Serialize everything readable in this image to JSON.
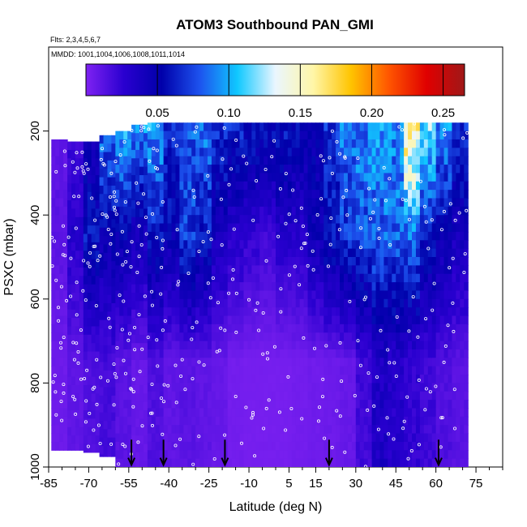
{
  "chart_data": {
    "type": "heatmap",
    "title": "ATOM3 Southbound PAN_GMI",
    "subtitle_flights": "Flts: 2,3,4,5,6,7",
    "subtitle_dates": "MMDD: 1001,1004,1006,1008,1011,1014",
    "xlabel": "Latitude (deg N)",
    "ylabel": "PSXC (mbar)",
    "xlim": [
      -85,
      85
    ],
    "ylim": [
      1000,
      0
    ],
    "x_ticks": [
      "-85",
      "-70",
      "-55",
      "-40",
      "-25",
      "-10",
      "5",
      "15",
      "30",
      "45",
      "60",
      "75"
    ],
    "y_ticks": [
      "200",
      "400",
      "600",
      "800",
      "1000"
    ],
    "colorbar": {
      "range": [
        0.0,
        0.265
      ],
      "tick_labels": [
        "0.05",
        "0.10",
        "0.15",
        "0.20",
        "0.25"
      ],
      "colors": [
        "#7f22f2",
        "#2a00d0",
        "#0000aa",
        "#1d52ee",
        "#10c8ff",
        "#eaf6ff",
        "#fff6a8",
        "#ffc400",
        "#ff5500",
        "#e00000",
        "#a01818"
      ]
    },
    "arrow_latitudes": [
      -54,
      -42,
      -19,
      20,
      61
    ],
    "profiles": [
      {
        "lat": -81,
        "pmin": 220,
        "pmax": 960,
        "upper": 0.01,
        "mid": 0.012,
        "low": 0.006
      },
      {
        "lat": -75,
        "pmin": 225,
        "pmax": 960,
        "upper": 0.02,
        "mid": 0.03,
        "low": 0.01
      },
      {
        "lat": -69,
        "pmin": 225,
        "pmax": 965,
        "upper": 0.04,
        "mid": 0.06,
        "low": 0.016
      },
      {
        "lat": -63,
        "pmin": 210,
        "pmax": 975,
        "upper": 0.085,
        "mid": 0.05,
        "low": 0.018
      },
      {
        "lat": -57,
        "pmin": 200,
        "pmax": 1000,
        "upper": 0.1,
        "mid": 0.05,
        "low": 0.012
      },
      {
        "lat": -51,
        "pmin": 185,
        "pmax": 1000,
        "upper": 0.09,
        "mid": 0.04,
        "low": 0.008
      },
      {
        "lat": -45,
        "pmin": 180,
        "pmax": 1000,
        "upper": 0.095,
        "mid": 0.06,
        "low": 0.015
      },
      {
        "lat": -39,
        "pmin": 180,
        "pmax": 1000,
        "upper": 0.07,
        "mid": 0.05,
        "low": 0.01
      },
      {
        "lat": -33,
        "pmin": 180,
        "pmax": 1000,
        "upper": 0.08,
        "mid": 0.07,
        "low": 0.012
      },
      {
        "lat": -27,
        "pmin": 180,
        "pmax": 1000,
        "upper": 0.085,
        "mid": 0.06,
        "low": 0.01
      },
      {
        "lat": -21,
        "pmin": 180,
        "pmax": 1000,
        "upper": 0.07,
        "mid": 0.04,
        "low": 0.008
      },
      {
        "lat": -15,
        "pmin": 180,
        "pmax": 1000,
        "upper": 0.065,
        "mid": 0.03,
        "low": 0.004
      },
      {
        "lat": -9,
        "pmin": 180,
        "pmax": 1000,
        "upper": 0.06,
        "mid": 0.025,
        "low": 0.003
      },
      {
        "lat": -3,
        "pmin": 180,
        "pmax": 1000,
        "upper": 0.055,
        "mid": 0.02,
        "low": 0.003
      },
      {
        "lat": 3,
        "pmin": 180,
        "pmax": 1000,
        "upper": 0.06,
        "mid": 0.03,
        "low": 0.003
      },
      {
        "lat": 9,
        "pmin": 180,
        "pmax": 1000,
        "upper": 0.055,
        "mid": 0.03,
        "low": 0.004
      },
      {
        "lat": 15,
        "pmin": 180,
        "pmax": 1000,
        "upper": 0.05,
        "mid": 0.045,
        "low": 0.005
      },
      {
        "lat": 21,
        "pmin": 180,
        "pmax": 1000,
        "upper": 0.07,
        "mid": 0.06,
        "low": 0.006
      },
      {
        "lat": 27,
        "pmin": 180,
        "pmax": 1000,
        "upper": 0.085,
        "mid": 0.07,
        "low": 0.008
      },
      {
        "lat": 33,
        "pmin": 180,
        "pmax": 1000,
        "upper": 0.09,
        "mid": 0.075,
        "low": 0.02
      },
      {
        "lat": 39,
        "pmin": 180,
        "pmax": 1000,
        "upper": 0.095,
        "mid": 0.08,
        "low": 0.035
      },
      {
        "lat": 45,
        "pmin": 180,
        "pmax": 1000,
        "upper": 0.09,
        "mid": 0.08,
        "low": 0.03
      },
      {
        "lat": 51,
        "pmin": 180,
        "pmax": 1000,
        "upper": 0.16,
        "mid": 0.085,
        "low": 0.025
      },
      {
        "lat": 57,
        "pmin": 180,
        "pmax": 1000,
        "upper": 0.12,
        "mid": 0.06,
        "low": 0.02
      },
      {
        "lat": 63,
        "pmin": 180,
        "pmax": 1000,
        "upper": 0.09,
        "mid": 0.05,
        "low": 0.015
      },
      {
        "lat": 69,
        "pmin": 180,
        "pmax": 1000,
        "upper": 0.07,
        "mid": 0.04,
        "low": 0.012
      }
    ]
  }
}
